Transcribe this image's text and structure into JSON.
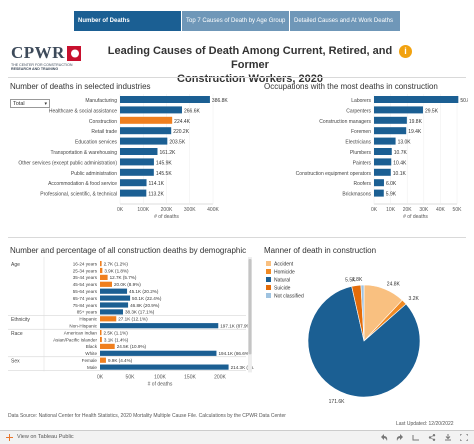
{
  "tabs": [
    {
      "label": "Number of Deaths",
      "active": true
    },
    {
      "label": "Top 7 Causes of Death by Age Group",
      "active": false
    },
    {
      "label": "Detailed Causes and At Work Deaths",
      "active": false
    }
  ],
  "logo": {
    "word": "CPWR",
    "sub1": "THE CENTER FOR CONSTRUCTION",
    "sub2": "RESEARCH AND TRAINING"
  },
  "title": {
    "line1": "Leading Causes of Death Among Current, Retired, and Former",
    "line2": "Construction Workers, 2020"
  },
  "info_icon": "i",
  "panel1": {
    "title": "Number of deaths in selected industries",
    "select_value": "Total",
    "select_icon": "▾"
  },
  "panel2": {
    "title": "Occupations with the most deaths in construction"
  },
  "panel3": {
    "title": "Number and percentage of all construction deaths by demographic"
  },
  "panel4": {
    "title": "Manner of death in construction"
  },
  "colors": {
    "blue": "#1b5f93",
    "orange": "#f07f1e",
    "light_orange": "#f9c080",
    "suicide": "#e36c0a",
    "natural": "#1b5f93",
    "accident": "#f9c080",
    "homicide": "#f08a24",
    "not_classified": "#9fc3e0"
  },
  "chart_data": [
    {
      "type": "bar",
      "orientation": "horizontal",
      "categories": [
        "Manufacturing",
        "Healthcare & social assistance",
        "Construction",
        "Retail trade",
        "Education services",
        "Transportation & warehousing",
        "Other services (except public administration)",
        "Public administration",
        "Accommodation & food service",
        "Professional, scientific, & technical"
      ],
      "values": [
        386.8,
        266.6,
        224.4,
        220.2,
        203.5,
        161.2,
        145.9,
        145.5,
        114.1,
        113.2
      ],
      "labels": [
        "386.8K",
        "266.6K",
        "224.4K",
        "220.2K",
        "203.5K",
        "161.2K",
        "145.9K",
        "145.5K",
        "114.1K",
        "113.2K"
      ],
      "highlight_index": 2,
      "xticks": [
        "0K",
        "100K",
        "200K",
        "300K",
        "400K"
      ],
      "xlim": [
        0,
        400
      ],
      "xlabel": "# of deaths"
    },
    {
      "type": "bar",
      "orientation": "horizontal",
      "categories": [
        "Laborers",
        "Carpenters",
        "Construction managers",
        "Foremen",
        "Electricians",
        "Plumbers",
        "Painters",
        "Construction equipment operators",
        "Roofers",
        "Brickmasons"
      ],
      "values": [
        50.8,
        29.5,
        19.8,
        19.4,
        13.0,
        10.7,
        10.4,
        10.1,
        6.0,
        5.9
      ],
      "labels": [
        "50.8K",
        "29.5K",
        "19.8K",
        "19.4K",
        "13.0K",
        "10.7K",
        "10.4K",
        "10.1K",
        "6.0K",
        "5.9K"
      ],
      "xticks": [
        "0K",
        "10K",
        "20K",
        "30K",
        "40K",
        "50K"
      ],
      "xlim": [
        0,
        50
      ],
      "xlabel": "# of deaths"
    },
    {
      "type": "bar",
      "orientation": "horizontal",
      "groups": [
        {
          "name": "Age",
          "rows": [
            {
              "label": "16-24 years",
              "value": 2.7,
              "text": "2.7K (1.2%)",
              "hi": false
            },
            {
              "label": "25-34 years",
              "value": 3.9,
              "text": "3.9K (1.8%)",
              "hi": false
            },
            {
              "label": "35-44 years",
              "value": 12.7,
              "text": "12.7K (5.7%)",
              "hi": false
            },
            {
              "label": "45-54 years",
              "value": 20.0,
              "text": "20.0K (8.9%)",
              "hi": false
            },
            {
              "label": "55-64 years",
              "value": 45.1,
              "text": "45.1K (20.2%)",
              "hi": true
            },
            {
              "label": "65-74 years",
              "value": 50.1,
              "text": "50.1K (22.4%)",
              "hi": true
            },
            {
              "label": "75-84 years",
              "value": 46.8,
              "text": "46.8K (20.9%)",
              "hi": true
            },
            {
              "label": "85+ years",
              "value": 38.3,
              "text": "38.3K (17.1%)",
              "hi": true
            }
          ]
        },
        {
          "name": "Ethnicity",
          "rows": [
            {
              "label": "Hispanic",
              "value": 27.1,
              "text": "27.1K (12.1%)",
              "hi": false
            },
            {
              "label": "Non-Hispanic",
              "value": 197.1,
              "text": "197.1K (87.9%)",
              "hi": true
            }
          ]
        },
        {
          "name": "Race",
          "rows": [
            {
              "label": "American Indian",
              "value": 2.5,
              "text": "2.5K (1.1%)",
              "hi": false
            },
            {
              "label": "Asian/Pacific Islander",
              "value": 3.1,
              "text": "3.1K (1.4%)",
              "hi": false
            },
            {
              "label": "Black",
              "value": 24.5,
              "text": "24.5K (10.9%)",
              "hi": false
            },
            {
              "label": "White",
              "value": 194.1,
              "text": "194.1K (86.6%)",
              "hi": true
            }
          ]
        },
        {
          "name": "Sex",
          "rows": [
            {
              "label": "Female",
              "value": 9.9,
              "text": "9.9K (4.4%)",
              "hi": false
            },
            {
              "label": "Male",
              "value": 214.3,
              "text": "214.3K (95.6%)",
              "hi": true
            }
          ]
        }
      ],
      "xticks": [
        "0K",
        "50K",
        "100K",
        "150K",
        "200K"
      ],
      "xlim": [
        0,
        200
      ],
      "xlabel": "# of deaths"
    },
    {
      "type": "pie",
      "slices": [
        {
          "name": "Accident",
          "value": 24.8,
          "label": "24.8K",
          "color": "#f9c080"
        },
        {
          "name": "Homicide",
          "value": 3.2,
          "label": "3.2K",
          "color": "#f08a24"
        },
        {
          "name": "Natural",
          "value": 171.6,
          "label": "171.6K",
          "color": "#1b5f93"
        },
        {
          "name": "Suicide",
          "value": 5.5,
          "label": "5.5K",
          "color": "#e36c0a"
        },
        {
          "name": "Not classified",
          "value": 1.8,
          "label": "1.8K",
          "color": "#9fc3e0"
        }
      ],
      "legend": "top-left"
    }
  ],
  "footer": {
    "source": "Data Source: National Center for Health Statistics, 2020 Mortality Multiple Cause File. Calculations by the CPWR Data Center",
    "updated": "Last Updated: 12/20/2022"
  },
  "bottombar": {
    "tableau": "View on Tableau Public"
  }
}
